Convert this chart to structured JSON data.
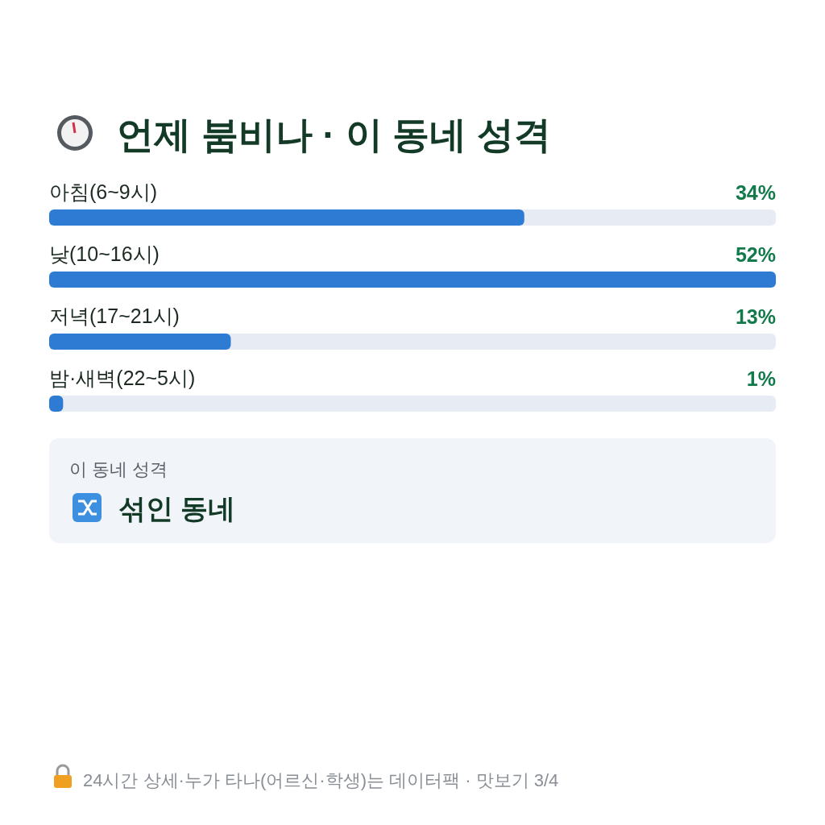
{
  "chart_data": {
    "type": "bar",
    "orientation": "horizontal",
    "title": "언제 붐비나 · 이 동네 성격",
    "categories": [
      "아침(6~9시)",
      "낮(10~16시)",
      "저녁(17~21시)",
      "밤·새벽(22~5시)"
    ],
    "values": [
      34,
      52,
      13,
      1
    ],
    "value_labels": [
      "34%",
      "52%",
      "13%",
      "1%"
    ],
    "color": "#2e7bd4",
    "annotations": [
      "이 동네 성격",
      "섞인 동네",
      "24시간 상세·누가 타나(어르신·학생)는 데이터팩 · 맛보기 3/4"
    ]
  }
}
